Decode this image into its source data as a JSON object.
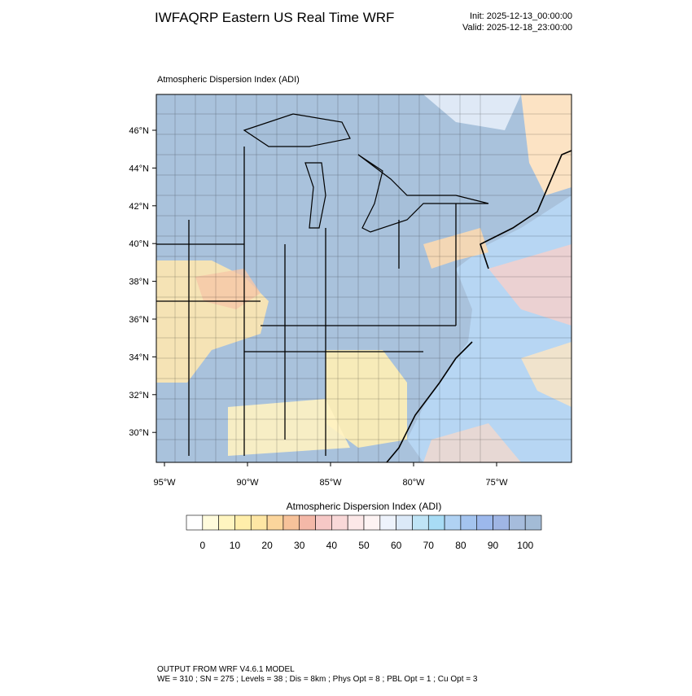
{
  "header": {
    "title": "IWFAQRP Eastern US Real Time WRF",
    "init": "Init: 2025-12-13_00:00:00",
    "valid": "Valid: 2025-12-18_23:00:00"
  },
  "map": {
    "subtitle": "Atmospheric Dispersion Index   (ADI)",
    "lat_labels": [
      "46°N",
      "44°N",
      "42°N",
      "40°N",
      "38°N",
      "36°N",
      "34°N",
      "32°N",
      "30°N"
    ],
    "lon_labels": [
      "95°W",
      "90°W",
      "85°W",
      "80°W",
      "75°W"
    ]
  },
  "colorbar": {
    "title": "Atmospheric Dispersion Index  (ADI)",
    "colors": [
      "#ffffff",
      "#fffbdc",
      "#fff5c0",
      "#ffeeaa",
      "#fee6a4",
      "#fbd59c",
      "#f7c29a",
      "#f4b8a8",
      "#f6c8c6",
      "#f9d8d8",
      "#fce8e8",
      "#fdf3f3",
      "#eef3fc",
      "#dbe9f8",
      "#bfe4f6",
      "#a8dcf5",
      "#b0d2f3",
      "#a4c4ef",
      "#9cb8ec",
      "#9fb5e4",
      "#a6bcdc",
      "#a3bbd6"
    ],
    "ticks": [
      0,
      10,
      20,
      30,
      40,
      50,
      60,
      70,
      80,
      90,
      100
    ]
  },
  "footer": {
    "line1": "OUTPUT FROM WRF V4.6.1 MODEL",
    "line2": "WE = 310 ; SN = 275 ; Levels = 38 ; Dis = 8km ; Phys Opt = 8 ; PBL Opt = 1 ; Cu Opt = 3"
  }
}
